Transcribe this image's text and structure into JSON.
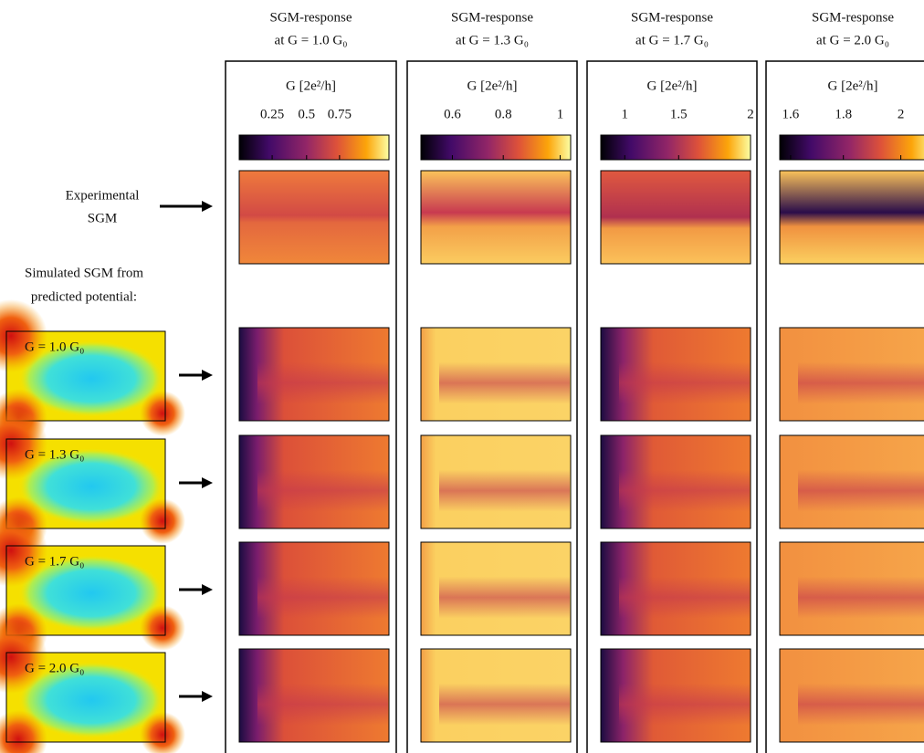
{
  "columns": [
    {
      "title": "SGM-response",
      "subtitle": "at G = 1.0 G₀",
      "axis_label": "G [2e²/h]",
      "ticks": [
        "0.25",
        "0.5",
        "0.75"
      ]
    },
    {
      "title": "SGM-response",
      "subtitle": "at G = 1.3 G₀",
      "axis_label": "G [2e²/h]",
      "ticks": [
        "0.6",
        "0.8",
        "1"
      ]
    },
    {
      "title": "SGM-response",
      "subtitle": "at G = 1.7 G₀",
      "axis_label": "G [2e²/h]",
      "ticks": [
        "1",
        "1.5",
        "2"
      ]
    },
    {
      "title": "SGM-response",
      "subtitle": "at G = 2.0 G₀",
      "axis_label": "G [2e²/h]",
      "ticks": [
        "1.6",
        "1.8",
        "2"
      ]
    }
  ],
  "experimental_label": [
    "Experimental",
    "SGM"
  ],
  "simulated_label": [
    "Simulated SGM from",
    "predicted potential:"
  ],
  "potential_labels": [
    "G = 1.0 G₀",
    "G = 1.3 G₀",
    "G = 1.7 G₀",
    "G = 2.0 G₀"
  ]
}
